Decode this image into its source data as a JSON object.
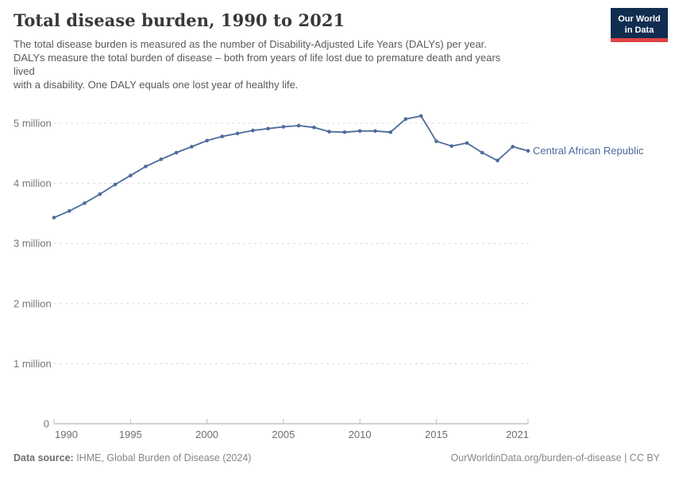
{
  "header": {
    "title": "Total disease burden, 1990 to 2021",
    "logo": {
      "line1": "Our World",
      "line2": "in Data",
      "background_color": "#102d50",
      "stripe_color": "#e04343"
    }
  },
  "subtitle": {
    "lines": [
      "The total disease burden is measured as the number of Disability-Adjusted Life Years (DALYs) per year.",
      "DALYs measure the total burden of disease – both from years of life lost due to premature death and years",
      "lived",
      "with a disability. One DALY equals one lost year of healthy life."
    ]
  },
  "chart_data": {
    "type": "line",
    "title": "Total disease burden, 1990 to 2021",
    "ylabel": "",
    "xlabel": "",
    "unit": "DALYs (Disability-Adjusted Life Years) per year",
    "grid": "dashed-horizontal",
    "legend_position": "end-of-line-label",
    "line_color": "#4c6a9c",
    "series": [
      {
        "name": "Central African Republic",
        "x": [
          1990,
          1991,
          1992,
          1993,
          1994,
          1995,
          1996,
          1997,
          1998,
          1999,
          2000,
          2001,
          2002,
          2003,
          2004,
          2005,
          2006,
          2007,
          2008,
          2009,
          2010,
          2011,
          2012,
          2013,
          2014,
          2015,
          2016,
          2017,
          2018,
          2019,
          2020,
          2021
        ],
        "values_million": [
          3.43,
          3.54,
          3.67,
          3.82,
          3.98,
          4.13,
          4.28,
          4.4,
          4.51,
          4.61,
          4.71,
          4.78,
          4.83,
          4.88,
          4.91,
          4.94,
          4.96,
          4.93,
          4.86,
          4.85,
          4.87,
          4.87,
          4.85,
          5.07,
          5.12,
          4.7,
          4.62,
          4.67,
          4.51,
          4.38,
          4.61,
          4.54
        ]
      }
    ],
    "xlim": [
      1990,
      2021
    ],
    "ylim": [
      0,
      5.3
    ],
    "xticks": [
      1990,
      1995,
      2000,
      2005,
      2010,
      2015,
      2021
    ],
    "yticks": [
      {
        "value": 0,
        "label": "0"
      },
      {
        "value": 1,
        "label": "1 million"
      },
      {
        "value": 2,
        "label": "2 million"
      },
      {
        "value": 3,
        "label": "3 million"
      },
      {
        "value": 4,
        "label": "4 million"
      },
      {
        "value": 5,
        "label": "5 million"
      }
    ]
  },
  "footer": {
    "source_label": "Data source:",
    "source_value": " IHME, Global Burden of Disease (2024)",
    "credit": "OurWorldinData.org/burden-of-disease | CC BY"
  }
}
